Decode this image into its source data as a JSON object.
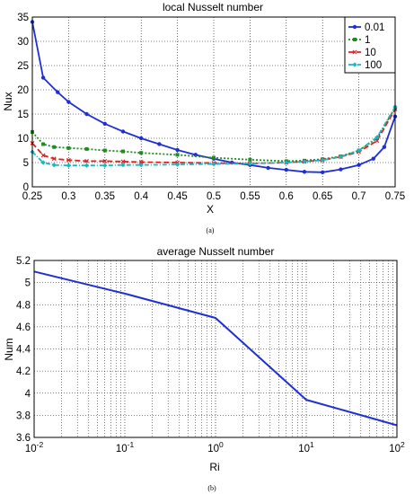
{
  "chart_data": [
    {
      "type": "line",
      "title": "local Nusselt number",
      "xlabel": "X",
      "ylabel": "Nux",
      "caption": "(a)",
      "xlim": [
        0.25,
        0.75
      ],
      "ylim": [
        0,
        35
      ],
      "xticks": [
        0.25,
        0.3,
        0.35,
        0.4,
        0.45,
        0.5,
        0.55,
        0.6,
        0.65,
        0.7,
        0.75
      ],
      "xtick_labels": [
        "0.25",
        "0.3",
        "0.35",
        "0.4",
        "0.45",
        "0.5",
        "0.55",
        "0.6",
        "0.65",
        "0.7",
        "0.75"
      ],
      "yticks": [
        0,
        5,
        10,
        15,
        20,
        25,
        30,
        35
      ],
      "ytick_labels": [
        "0",
        "5",
        "10",
        "15",
        "20",
        "25",
        "30",
        "35"
      ],
      "grid": true,
      "legend_position": "top-right",
      "series": [
        {
          "name": "0.01",
          "color": "#1f2fd6",
          "dash": "",
          "marker": "circle",
          "x": [
            0.25,
            0.265,
            0.285,
            0.3,
            0.325,
            0.35,
            0.375,
            0.4,
            0.425,
            0.45,
            0.475,
            0.5,
            0.525,
            0.55,
            0.575,
            0.6,
            0.625,
            0.65,
            0.675,
            0.7,
            0.72,
            0.735,
            0.75
          ],
          "values": [
            34,
            22.5,
            19.5,
            17.5,
            15,
            13,
            11.4,
            10,
            8.8,
            7.6,
            6.6,
            5.8,
            5,
            4.5,
            3.9,
            3.5,
            3.1,
            3.0,
            3.6,
            4.5,
            5.8,
            8.2,
            14.5
          ]
        },
        {
          "name": "1",
          "color": "#1e8c1e",
          "dash": "2,2",
          "marker": "square",
          "x": [
            0.25,
            0.265,
            0.28,
            0.3,
            0.325,
            0.35,
            0.375,
            0.4,
            0.45,
            0.5,
            0.55,
            0.6,
            0.625,
            0.65,
            0.675,
            0.7,
            0.725,
            0.75
          ],
          "values": [
            11.3,
            8.8,
            8.2,
            8.0,
            7.8,
            7.5,
            7.3,
            7.0,
            6.6,
            6.0,
            5.6,
            5.3,
            5.4,
            5.7,
            6.3,
            7.5,
            10.0,
            16.3
          ]
        },
        {
          "name": "10",
          "color": "#e02020",
          "dash": "6,3",
          "marker": "cross",
          "x": [
            0.25,
            0.265,
            0.28,
            0.3,
            0.325,
            0.35,
            0.375,
            0.4,
            0.45,
            0.5,
            0.55,
            0.6,
            0.625,
            0.65,
            0.675,
            0.7,
            0.725,
            0.75
          ],
          "values": [
            9.0,
            6.5,
            5.8,
            5.5,
            5.3,
            5.3,
            5.2,
            5.1,
            5.0,
            4.9,
            4.8,
            5.0,
            5.2,
            5.5,
            6.2,
            7.2,
            9.5,
            16.0
          ]
        },
        {
          "name": "100",
          "color": "#18b6c4",
          "dash": "5,2,1,2",
          "marker": "diamond",
          "x": [
            0.25,
            0.265,
            0.28,
            0.3,
            0.325,
            0.35,
            0.375,
            0.4,
            0.45,
            0.5,
            0.55,
            0.6,
            0.625,
            0.65,
            0.675,
            0.7,
            0.725,
            0.75
          ],
          "values": [
            7.2,
            5.0,
            4.5,
            4.4,
            4.4,
            4.4,
            4.5,
            4.5,
            4.6,
            4.7,
            4.8,
            5.0,
            5.2,
            5.5,
            6.2,
            7.5,
            10.2,
            16.5
          ]
        }
      ]
    },
    {
      "type": "line",
      "title": "average Nusselt number",
      "xlabel": "Ri",
      "ylabel": "Num",
      "caption": "(b)",
      "xscale": "log",
      "xlim": [
        0.01,
        100
      ],
      "ylim": [
        3.6,
        5.2
      ],
      "xticks": [
        0.01,
        0.1,
        1,
        10,
        100
      ],
      "xtick_bases": [
        "10",
        "10",
        "10",
        "10",
        "10"
      ],
      "xtick_exps": [
        "-2",
        "-1",
        "0",
        "1",
        "2"
      ],
      "yticks": [
        3.6,
        3.8,
        4,
        4.2,
        4.4,
        4.6,
        4.8,
        5,
        5.2
      ],
      "ytick_labels": [
        "3.6",
        "3.8",
        "4",
        "4.2",
        "4.4",
        "4.6",
        "4.8",
        "5",
        "5.2"
      ],
      "grid": true,
      "series": [
        {
          "color": "#1f2fd6",
          "x": [
            0.01,
            0.1,
            1,
            10,
            100
          ],
          "values": [
            5.1,
            4.9,
            4.68,
            3.94,
            3.71
          ]
        }
      ]
    }
  ]
}
